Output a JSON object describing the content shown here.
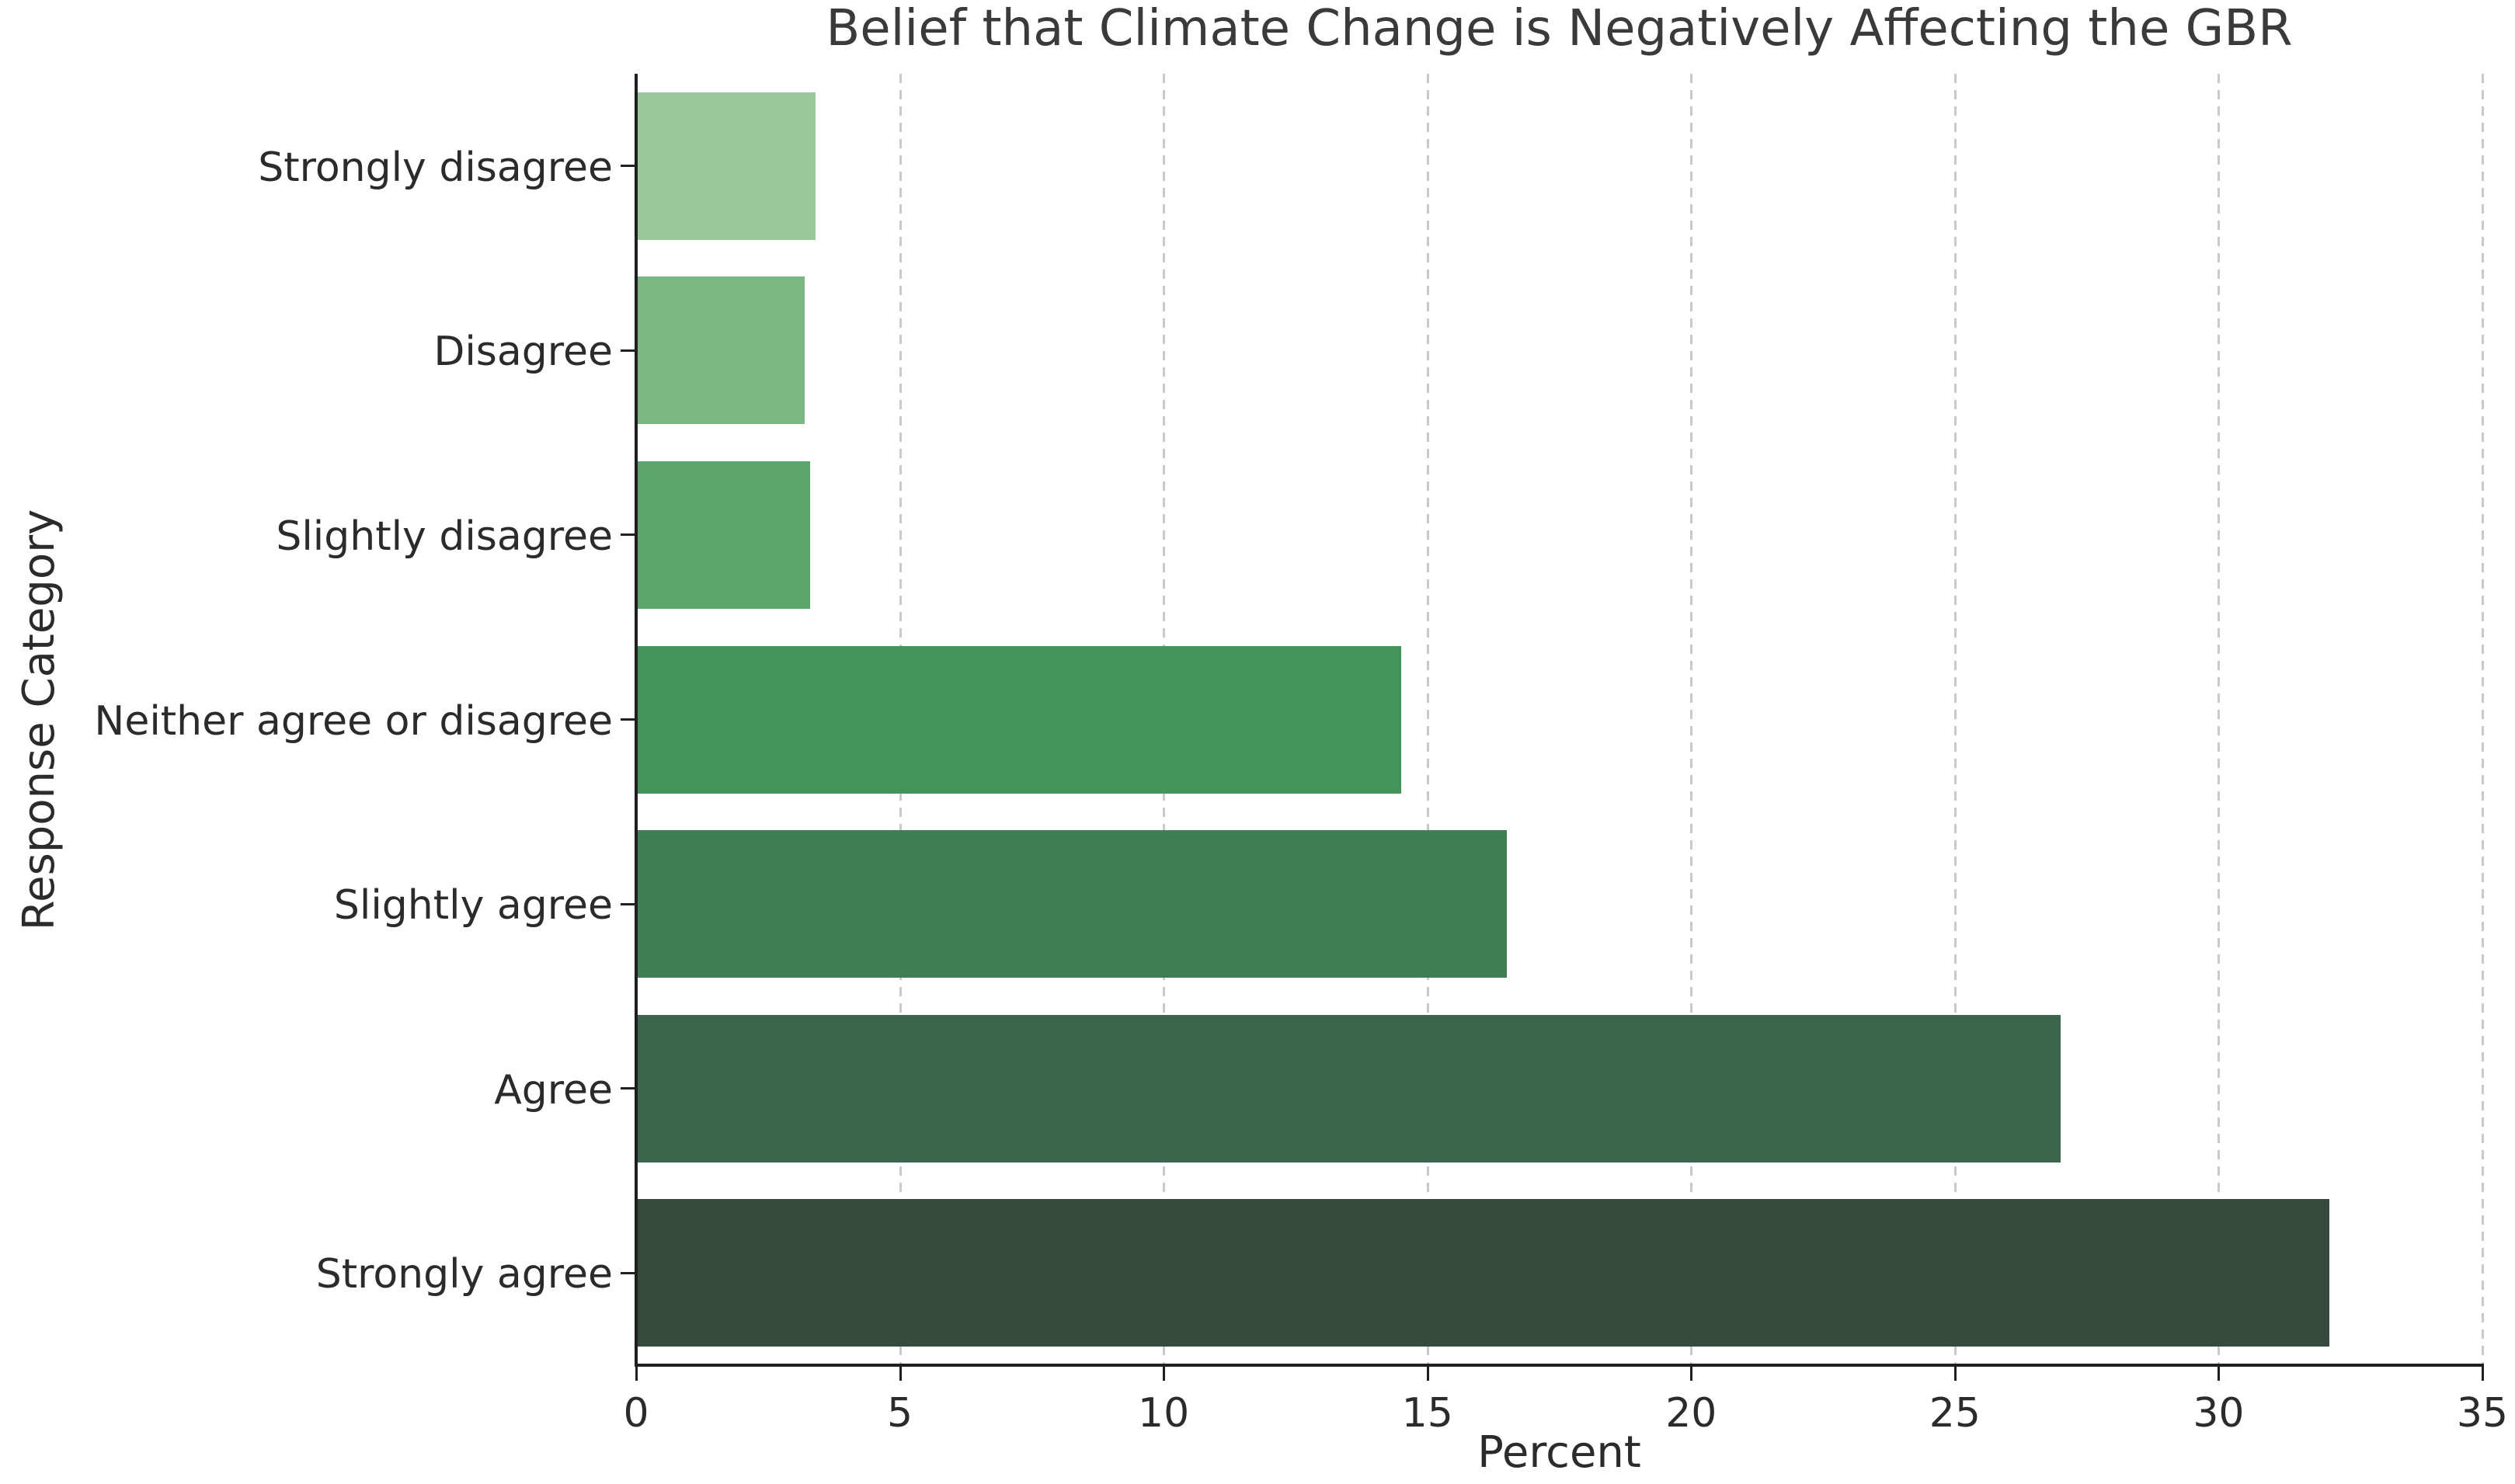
{
  "chart_data": {
    "type": "bar",
    "orientation": "horizontal",
    "title": "Belief that Climate Change is Negatively Affecting the GBR",
    "xlabel": "Percent",
    "ylabel": "Response Category",
    "categories": [
      "Strongly disagree",
      "Disagree",
      "Slightly disagree",
      "Neither agree or disagree",
      "Slightly agree",
      "Agree",
      "Strongly agree"
    ],
    "values": [
      3.4,
      3.2,
      3.3,
      14.5,
      16.5,
      27.0,
      32.1
    ],
    "bar_colors": [
      "#99c79a",
      "#7ab883",
      "#5ca56c",
      "#43945a",
      "#3f7e52",
      "#3b654c",
      "#36493d"
    ],
    "xlim": [
      0,
      35
    ],
    "xticks": [
      0,
      5,
      10,
      15,
      20,
      25,
      30,
      35
    ],
    "bar_fraction": 0.8,
    "grid": "vertical-dashed",
    "grid_color": "#c9c9c9",
    "spine_color": "#1f1f1f",
    "text_color": "#2b2b2b",
    "legend": "none"
  }
}
